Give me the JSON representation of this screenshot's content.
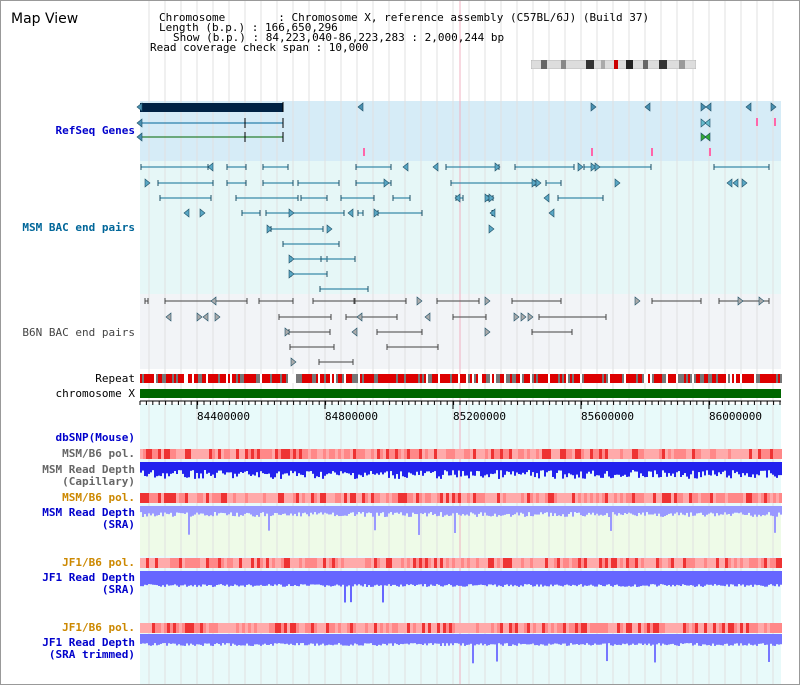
{
  "page": {
    "title": "Map View"
  },
  "header": {
    "chromosome_label": "Chromosome        : Chromosome X, reference assembly (C57BL/6J) (Build 37)",
    "length_label": "Length (b.p.) : 166,650,296",
    "show_label": "Show (b.p.) : 84,223,040-86,223,283 : 2,000,244 bp",
    "coverage_label": "Read coverage check span : 10,000"
  },
  "tracks": {
    "refseq": {
      "label": "RefSeq Genes",
      "color": "#0000cc"
    },
    "msm_bac": {
      "label": "MSM BAC end pairs",
      "color": "#006699"
    },
    "b6n_bac": {
      "label": "B6N BAC end pairs",
      "color": "#444444"
    },
    "repeat": {
      "label": "Repeat"
    },
    "chromosome": {
      "label": "chromosome X"
    },
    "dbsnp": {
      "label": "dbSNP(Mouse)",
      "color": "#0000cc"
    },
    "msm_b6_pol_1": {
      "label": "MSM/B6 pol.",
      "color": "#666666"
    },
    "msm_depth_cap": {
      "label": "MSM Read Depth\n(Capillary)",
      "color": "#666666"
    },
    "msm_b6_pol_2": {
      "label": "MSM/B6 pol.",
      "color": "#cc8800"
    },
    "msm_depth_sra": {
      "label": "MSM Read Depth\n(SRA)",
      "color": "#0000cc"
    },
    "jf1_b6_pol_1": {
      "label": "JF1/B6 pol.",
      "color": "#cc8800"
    },
    "jf1_depth_sra": {
      "label": "JF1 Read Depth\n(SRA)",
      "color": "#0000cc"
    },
    "jf1_b6_pol_2": {
      "label": "JF1/B6 pol.",
      "color": "#cc8800"
    },
    "jf1_depth_trim": {
      "label": "JF1 Read Depth\n(SRA trimmed)",
      "color": "#0000cc"
    }
  },
  "axis": {
    "ticks": [
      "84400000",
      "84800000",
      "85200000",
      "85600000",
      "86000000"
    ]
  },
  "colors": {
    "refseq_bg": "#d6ecf7",
    "msm_bg": "#e6f7f7",
    "b6n_bg": "#f2f4f7",
    "chromosome_bar": "#006600",
    "repeat_red": "#dd0000",
    "repeat_gray": "#777777",
    "depth_blue": "#3333ff",
    "depth_light": "#8888ff",
    "pol_pink": "#ffaaaa",
    "pol_red": "#ee3333"
  }
}
